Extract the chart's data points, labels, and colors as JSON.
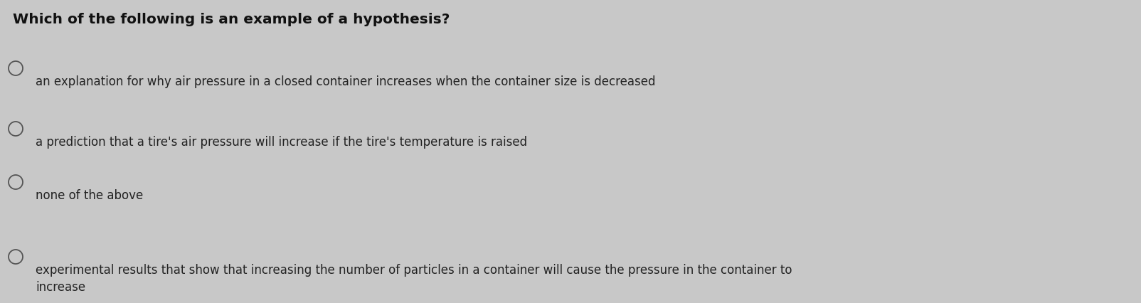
{
  "background_color": "#c8c8c8",
  "title": "Which of the following is an example of a hypothesis?",
  "title_fontsize": 14.5,
  "title_fontweight": "bold",
  "title_color": "#111111",
  "options": [
    "an explanation for why air pressure in a closed container increases when the container size is decreased",
    "a prediction that a tire's air pressure will increase if the tire's temperature is raised",
    "none of the above",
    "experimental results that show that increasing the number of particles in a container will cause the pressure in the container to\nincrease"
  ],
  "option_fontsize": 12,
  "text_color": "#222222",
  "circle_color": "#555555",
  "fig_width": 16.04,
  "fig_height": 4.26,
  "dpi": 100
}
